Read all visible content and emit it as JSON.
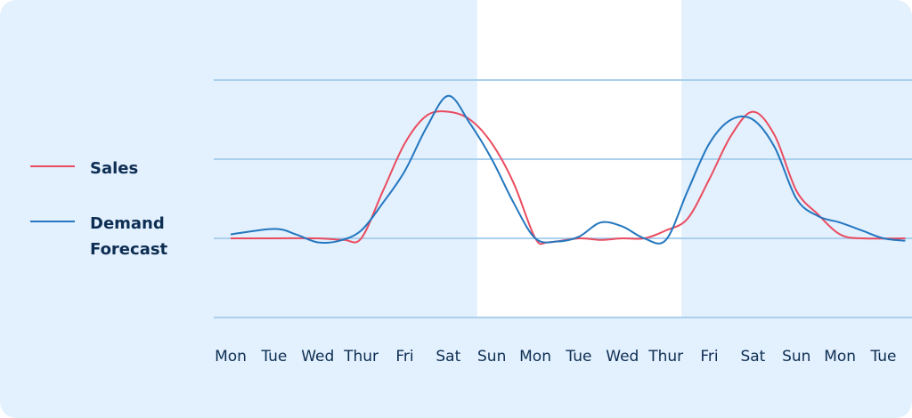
{
  "colors": {
    "background": "#e3f0fe",
    "highlight": "#ffffff",
    "grid": "#aad0ee",
    "sales": "#ea4c5f",
    "forecast": "#2377bf",
    "text": "#0d2e52"
  },
  "legend": {
    "sales_label": "Sales",
    "forecast_label": "Demand\nForecast"
  },
  "chart_data": {
    "type": "line",
    "x": [
      "Mon",
      "Tue",
      "Wed",
      "Thur",
      "Fri",
      "Sat",
      "Sun",
      "Mon",
      "Tue",
      "Wed",
      "Thur",
      "Fri",
      "Sat",
      "Sun",
      "Mon",
      "Tue"
    ],
    "highlight_range": [
      "Sun",
      "Fri"
    ],
    "grid": true,
    "legend_position": "left",
    "series": [
      {
        "name": "Sales",
        "values": [
          [
            0,
            1.0
          ],
          [
            1,
            1.0
          ],
          [
            2,
            1.0
          ],
          [
            2.6,
            0.98
          ],
          [
            3.0,
            1.0
          ],
          [
            3.5,
            1.6
          ],
          [
            4.0,
            2.2
          ],
          [
            4.5,
            2.55
          ],
          [
            5.0,
            2.6
          ],
          [
            5.5,
            2.5
          ],
          [
            6.0,
            2.2
          ],
          [
            6.5,
            1.7
          ],
          [
            7.0,
            1.0
          ],
          [
            7.3,
            0.95
          ],
          [
            8.0,
            1.0
          ],
          [
            8.5,
            0.98
          ],
          [
            9.0,
            1.0
          ],
          [
            9.5,
            1.0
          ],
          [
            10.0,
            1.1
          ],
          [
            10.5,
            1.25
          ],
          [
            11.0,
            1.75
          ],
          [
            11.5,
            2.3
          ],
          [
            12.0,
            2.6
          ],
          [
            12.5,
            2.3
          ],
          [
            13.0,
            1.6
          ],
          [
            13.5,
            1.3
          ],
          [
            14.0,
            1.05
          ],
          [
            14.5,
            1.0
          ],
          [
            15.5,
            1.0
          ]
        ]
      },
      {
        "name": "Demand Forecast",
        "values": [
          [
            0,
            1.05
          ],
          [
            1,
            1.12
          ],
          [
            1.5,
            1.05
          ],
          [
            2.0,
            0.95
          ],
          [
            2.5,
            0.97
          ],
          [
            3.0,
            1.1
          ],
          [
            3.5,
            1.45
          ],
          [
            4.0,
            1.85
          ],
          [
            4.5,
            2.4
          ],
          [
            5.0,
            2.8
          ],
          [
            5.5,
            2.45
          ],
          [
            6.0,
            2.0
          ],
          [
            6.5,
            1.45
          ],
          [
            7.0,
            1.0
          ],
          [
            7.5,
            0.96
          ],
          [
            8.0,
            1.02
          ],
          [
            8.5,
            1.2
          ],
          [
            9.0,
            1.15
          ],
          [
            9.5,
            1.0
          ],
          [
            10.0,
            0.98
          ],
          [
            10.5,
            1.6
          ],
          [
            11.0,
            2.2
          ],
          [
            11.5,
            2.5
          ],
          [
            12.0,
            2.5
          ],
          [
            12.5,
            2.15
          ],
          [
            13.0,
            1.5
          ],
          [
            13.5,
            1.28
          ],
          [
            14.0,
            1.2
          ],
          [
            14.5,
            1.1
          ],
          [
            15.0,
            1.0
          ],
          [
            15.5,
            0.97
          ]
        ]
      }
    ],
    "ylim": [
      0,
      3.1
    ]
  }
}
